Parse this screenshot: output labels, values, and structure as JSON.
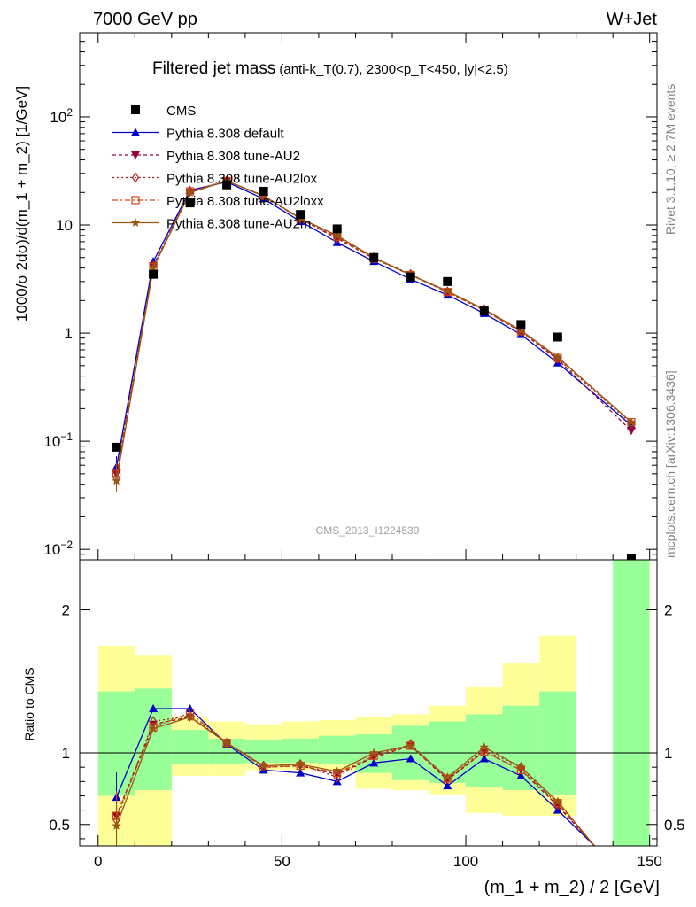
{
  "header": {
    "left": "7000 GeV pp",
    "right": "W+Jet"
  },
  "side_labels": {
    "rivet": "Rivet 3.1.10, ≥ 2.7M events",
    "mcplots": "mcplots.cern.ch [arXiv:1306.3436]"
  },
  "chart_data": [
    {
      "type": "line",
      "title": "Filtered jet mass",
      "subtitle": "(anti-k_T(0.7), 2300<p_T<450, |y|<2.5)",
      "watermark": "CMS_2013_I1224539",
      "ylabel": "1000/σ 2dσ)/d(m_1 + m_2) [1/GeV]",
      "xlim": [
        -5,
        152
      ],
      "ylim": [
        0.008,
        600
      ],
      "log_y": true,
      "x_ticks": [
        0,
        50,
        100,
        150
      ],
      "y_ticks": [
        {
          "value": 0.01,
          "base": "10",
          "exp": "−2"
        },
        {
          "value": 0.1,
          "base": "10",
          "exp": "−1"
        },
        {
          "value": 1,
          "label": "1"
        },
        {
          "value": 10,
          "label": "10"
        },
        {
          "value": 100,
          "base": "10",
          "exp": "2"
        }
      ],
      "legend_position": "top-left",
      "data": {
        "name": "CMS",
        "x": [
          5,
          15,
          25,
          35,
          45,
          55,
          65,
          75,
          85,
          95,
          105,
          115,
          125,
          145
        ],
        "y": [
          0.088,
          3.5,
          16,
          23.5,
          20.5,
          12.5,
          9.2,
          5.0,
          3.3,
          3.0,
          1.6,
          1.2,
          0.92,
          0.008
        ]
      },
      "series": [
        {
          "name": "Pythia 8.308 default",
          "color": "#0000cc",
          "marker": "triangle-up",
          "dash": "solid",
          "x": [
            5,
            15,
            25,
            35,
            45,
            55,
            65,
            75,
            85,
            95,
            105,
            115,
            125,
            145
          ],
          "y": [
            0.058,
            4.6,
            21.0,
            25.0,
            17.5,
            10.8,
            6.9,
            4.6,
            3.15,
            2.25,
            1.52,
            0.97,
            0.53,
            0.14
          ]
        },
        {
          "name": "Pythia 8.308 tune-AU2",
          "color": "#990033",
          "marker": "triangle-down",
          "dash": "4,3",
          "x": [
            5,
            15,
            25,
            35,
            45,
            55,
            65,
            75,
            85,
            95,
            105,
            115,
            125,
            145
          ],
          "y": [
            0.05,
            4.2,
            20.0,
            25.5,
            18.5,
            11.4,
            7.5,
            4.9,
            3.45,
            2.4,
            1.63,
            1.03,
            0.57,
            0.125
          ]
        },
        {
          "name": "Pythia 8.308 tune-AU2lox",
          "color": "#aa2222",
          "marker": "diamond-open",
          "dash": "2,3",
          "x": [
            5,
            15,
            25,
            35,
            45,
            55,
            65,
            75,
            85,
            95,
            105,
            115,
            125,
            145
          ],
          "y": [
            0.046,
            4.2,
            20.5,
            25.5,
            18.8,
            11.5,
            7.6,
            5.0,
            3.5,
            2.42,
            1.65,
            1.05,
            0.58,
            0.145
          ]
        },
        {
          "name": "Pythia 8.308 tune-AU2loxx",
          "color": "#cc4411",
          "marker": "square-open",
          "dash": "6,3,2,3",
          "x": [
            5,
            15,
            25,
            35,
            45,
            55,
            65,
            75,
            85,
            95,
            105,
            115,
            125,
            145
          ],
          "y": [
            0.05,
            4.1,
            20.5,
            25.5,
            18.6,
            11.4,
            7.8,
            4.9,
            3.45,
            2.4,
            1.62,
            1.04,
            0.59,
            0.15
          ]
        },
        {
          "name": "Pythia 8.308 tune-AU2m",
          "color": "#995511",
          "marker": "star",
          "dash": "solid",
          "x": [
            5,
            15,
            25,
            35,
            45,
            55,
            65,
            75,
            85,
            95,
            105,
            115,
            125,
            145
          ],
          "y": [
            0.043,
            4.0,
            20.0,
            25.5,
            18.6,
            11.5,
            8.0,
            5.0,
            3.45,
            2.45,
            1.66,
            1.06,
            0.6,
            0.15
          ]
        }
      ]
    },
    {
      "type": "line",
      "ylabel": "Ratio to CMS",
      "xlabel": "(m_1 + m_2) / 2 [GeV]",
      "xlim": [
        -5,
        152
      ],
      "ylim": [
        0.35,
        2.35
      ],
      "x_ticks": [
        0,
        50,
        100,
        150
      ],
      "y_ticks": [
        0.5,
        1,
        2
      ],
      "reference": 1,
      "bands": [
        {
          "x0": 0,
          "x1": 10,
          "yellow": [
            0.3,
            1.75
          ],
          "green": [
            0.7,
            1.43
          ]
        },
        {
          "x0": 10,
          "x1": 20,
          "yellow": [
            0.3,
            1.68
          ],
          "green": [
            0.74,
            1.45
          ]
        },
        {
          "x0": 20,
          "x1": 30,
          "yellow": [
            0.84,
            1.25
          ],
          "green": [
            0.92,
            1.16
          ]
        },
        {
          "x0": 30,
          "x1": 40,
          "yellow": [
            0.84,
            1.22
          ],
          "green": [
            0.92,
            1.1
          ]
        },
        {
          "x0": 40,
          "x1": 50,
          "yellow": [
            0.88,
            1.2
          ],
          "green": [
            0.93,
            1.09
          ]
        },
        {
          "x0": 50,
          "x1": 60,
          "yellow": [
            0.88,
            1.22
          ],
          "green": [
            0.93,
            1.1
          ]
        },
        {
          "x0": 60,
          "x1": 70,
          "yellow": [
            0.87,
            1.23
          ],
          "green": [
            0.92,
            1.12
          ]
        },
        {
          "x0": 70,
          "x1": 80,
          "yellow": [
            0.75,
            1.25
          ],
          "green": [
            0.86,
            1.13
          ]
        },
        {
          "x0": 80,
          "x1": 90,
          "yellow": [
            0.74,
            1.27
          ],
          "green": [
            0.81,
            1.19
          ]
        },
        {
          "x0": 90,
          "x1": 100,
          "yellow": [
            0.71,
            1.33
          ],
          "green": [
            0.79,
            1.22
          ]
        },
        {
          "x0": 100,
          "x1": 110,
          "yellow": [
            0.58,
            1.46
          ],
          "green": [
            0.76,
            1.27
          ]
        },
        {
          "x0": 110,
          "x1": 120,
          "yellow": [
            0.56,
            1.63
          ],
          "green": [
            0.74,
            1.33
          ]
        },
        {
          "x0": 120,
          "x1": 130,
          "yellow": [
            0.56,
            1.82
          ],
          "green": [
            0.71,
            1.43
          ]
        },
        {
          "x0": 140,
          "x1": 150,
          "yellow": [
            0.35,
            2.35
          ],
          "green": [
            0.35,
            2.35
          ]
        }
      ],
      "series": [
        {
          "name": "Pythia 8.308 default",
          "x": [
            5,
            15,
            25,
            35,
            45,
            55,
            65,
            75,
            85,
            95,
            105,
            115,
            125,
            135
          ],
          "y": [
            0.69,
            1.31,
            1.31,
            1.06,
            0.88,
            0.86,
            0.8,
            0.93,
            0.96,
            0.77,
            0.96,
            0.84,
            0.6,
            0.3
          ]
        },
        {
          "name": "Pythia 8.308 tune-AU2",
          "x": [
            5,
            15,
            25,
            35,
            45,
            55,
            65,
            75,
            85,
            95,
            105,
            115,
            125,
            135
          ],
          "y": [
            0.56,
            1.2,
            1.25,
            1.07,
            0.9,
            0.91,
            0.85,
            0.97,
            1.05,
            0.81,
            1.01,
            0.88,
            0.63,
            0.33
          ]
        },
        {
          "name": "Pythia 8.308 tune-AU2lox",
          "x": [
            5,
            15,
            25,
            35,
            45,
            55,
            65,
            75,
            85,
            95,
            105,
            115,
            125,
            135
          ],
          "y": [
            0.53,
            1.22,
            1.26,
            1.07,
            0.91,
            0.92,
            0.83,
            0.98,
            1.06,
            0.82,
            1.02,
            0.9,
            0.64,
            0.33
          ]
        },
        {
          "name": "Pythia 8.308 tune-AU2loxx",
          "x": [
            5,
            15,
            25,
            35,
            45,
            55,
            65,
            75,
            85,
            95,
            105,
            115,
            125,
            135
          ],
          "y": [
            0.56,
            1.18,
            1.28,
            1.07,
            0.9,
            0.91,
            0.86,
            0.98,
            1.05,
            0.82,
            1.01,
            0.88,
            0.65,
            0.33
          ]
        },
        {
          "name": "Pythia 8.308 tune-AU2m",
          "x": [
            5,
            15,
            25,
            35,
            45,
            55,
            65,
            75,
            85,
            95,
            105,
            115,
            125,
            135
          ],
          "y": [
            0.49,
            1.17,
            1.25,
            1.07,
            0.91,
            0.92,
            0.87,
            1.0,
            1.05,
            0.83,
            1.04,
            0.9,
            0.66,
            0.33
          ]
        }
      ]
    }
  ]
}
